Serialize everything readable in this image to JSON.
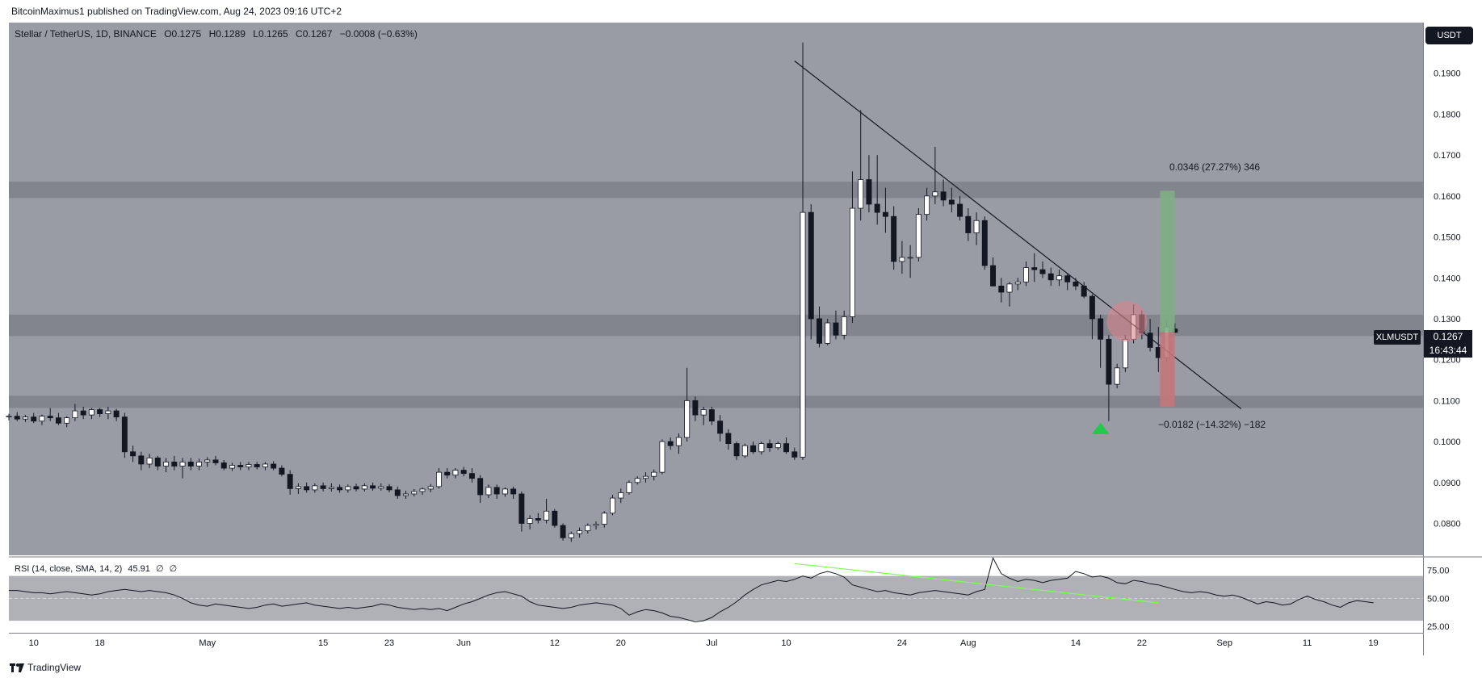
{
  "header": {
    "publish_line": "BitcoinMaximus1 published on TradingView.com, Aug 24, 2023 09:16 UTC+2"
  },
  "legend": {
    "symbol": "Stellar / TetherUS, 1D, BINANCE",
    "o_label": "O",
    "o_value": "0.1275",
    "h_label": "H",
    "h_value": "0.1289",
    "l_label": "L",
    "l_value": "0.1265",
    "c_label": "C",
    "c_value": "0.1267",
    "change": "−0.0008 (−0.63%)"
  },
  "currency_button": "USDT",
  "ticker": {
    "symbol": "XLMUSDT",
    "price": "0.1267",
    "countdown": "16:43:44"
  },
  "rsi_legend": {
    "label": "RSI (14, close, SMA, 14, 2)",
    "value": "45.91",
    "extra1": "∅",
    "extra2": "∅"
  },
  "footer": {
    "brand": "TradingView"
  },
  "colors": {
    "up": "#ffffff",
    "down": "#131722",
    "zone": "#7e8189",
    "green_target": "#7fae85",
    "red_target": "#c4757b",
    "rsi_trend": "#7cff55",
    "marker": "#22c94a",
    "circle": "#d9838b"
  },
  "chart_data": {
    "type": "candlestick",
    "symbol": "XLMUSDT",
    "interval": "1D",
    "ylim": [
      0.073,
      0.2
    ],
    "y_ticks": [
      0.08,
      0.09,
      0.1,
      0.11,
      0.12,
      0.13,
      0.14,
      0.15,
      0.16,
      0.17,
      0.18,
      0.19,
      0.2
    ],
    "y_tick_labels": [
      "0.0800",
      "0.0900",
      "0.1000",
      "0.1100",
      "0.1200",
      "0.1300",
      "0.1400",
      "0.1500",
      "0.1600",
      "0.1700",
      "0.1800",
      "0.1900",
      "0.2000"
    ],
    "x_ticks": [
      {
        "label": "10",
        "date": "2023-04-10"
      },
      {
        "label": "18",
        "date": "2023-04-18"
      },
      {
        "label": "May",
        "date": "2023-05-01"
      },
      {
        "label": "15",
        "date": "2023-05-15"
      },
      {
        "label": "23",
        "date": "2023-05-23"
      },
      {
        "label": "Jun",
        "date": "2023-06-01"
      },
      {
        "label": "12",
        "date": "2023-06-12"
      },
      {
        "label": "20",
        "date": "2023-06-20"
      },
      {
        "label": "Jul",
        "date": "2023-07-01"
      },
      {
        "label": "10",
        "date": "2023-07-10"
      },
      {
        "label": "24",
        "date": "2023-07-24"
      },
      {
        "label": "Aug",
        "date": "2023-08-01"
      },
      {
        "label": "14",
        "date": "2023-08-14"
      },
      {
        "label": "22",
        "date": "2023-08-22"
      },
      {
        "label": "Sep",
        "date": "2023-09-01"
      },
      {
        "label": "11",
        "date": "2023-09-11"
      },
      {
        "label": "19",
        "date": "2023-09-19"
      }
    ],
    "x_start": "2023-04-07",
    "x_end": "2023-09-25",
    "candles_start": "2023-04-07",
    "candles": [
      [
        0.106,
        0.1068,
        0.1052,
        0.1062
      ],
      [
        0.1062,
        0.1072,
        0.105,
        0.1055
      ],
      [
        0.1055,
        0.1065,
        0.1048,
        0.106
      ],
      [
        0.106,
        0.107,
        0.1045,
        0.105
      ],
      [
        0.105,
        0.1066,
        0.104,
        0.1062
      ],
      [
        0.1062,
        0.1082,
        0.105,
        0.1058
      ],
      [
        0.1058,
        0.107,
        0.104,
        0.1045
      ],
      [
        0.1045,
        0.1062,
        0.1035,
        0.1058
      ],
      [
        0.1058,
        0.1092,
        0.105,
        0.1075
      ],
      [
        0.1075,
        0.1085,
        0.1055,
        0.1065
      ],
      [
        0.1065,
        0.1082,
        0.1055,
        0.1078
      ],
      [
        0.1078,
        0.1082,
        0.106,
        0.1068
      ],
      [
        0.1068,
        0.1085,
        0.1055,
        0.1075
      ],
      [
        0.1075,
        0.108,
        0.105,
        0.106
      ],
      [
        0.106,
        0.107,
        0.096,
        0.0975
      ],
      [
        0.0975,
        0.099,
        0.095,
        0.0965
      ],
      [
        0.0965,
        0.0975,
        0.093,
        0.0945
      ],
      [
        0.0945,
        0.097,
        0.0935,
        0.096
      ],
      [
        0.096,
        0.0965,
        0.093,
        0.094
      ],
      [
        0.094,
        0.096,
        0.0925,
        0.095
      ],
      [
        0.095,
        0.0965,
        0.093,
        0.094
      ],
      [
        0.094,
        0.096,
        0.091,
        0.095
      ],
      [
        0.095,
        0.096,
        0.093,
        0.094
      ],
      [
        0.094,
        0.0958,
        0.093,
        0.095
      ],
      [
        0.095,
        0.0962,
        0.0938,
        0.0955
      ],
      [
        0.0955,
        0.0965,
        0.0942,
        0.0948
      ],
      [
        0.0948,
        0.0955,
        0.093,
        0.0935
      ],
      [
        0.0935,
        0.0948,
        0.0928,
        0.0942
      ],
      [
        0.0942,
        0.095,
        0.093,
        0.0938
      ],
      [
        0.0938,
        0.095,
        0.093,
        0.0944
      ],
      [
        0.0944,
        0.095,
        0.0932,
        0.0938
      ],
      [
        0.0938,
        0.095,
        0.093,
        0.0945
      ],
      [
        0.0945,
        0.0952,
        0.093,
        0.0935
      ],
      [
        0.0935,
        0.0942,
        0.0915,
        0.092
      ],
      [
        0.092,
        0.093,
        0.087,
        0.0885
      ],
      [
        0.0885,
        0.0898,
        0.0872,
        0.089
      ],
      [
        0.089,
        0.09,
        0.0875,
        0.0882
      ],
      [
        0.0882,
        0.0898,
        0.0875,
        0.0892
      ],
      [
        0.0892,
        0.09,
        0.0878,
        0.0885
      ],
      [
        0.0885,
        0.0898,
        0.0878,
        0.0888
      ],
      [
        0.0888,
        0.0895,
        0.0875,
        0.0882
      ],
      [
        0.0882,
        0.0895,
        0.0875,
        0.089
      ],
      [
        0.089,
        0.0897,
        0.0878,
        0.0884
      ],
      [
        0.0884,
        0.0898,
        0.0878,
        0.0892
      ],
      [
        0.0892,
        0.09,
        0.088,
        0.0886
      ],
      [
        0.0886,
        0.0898,
        0.088,
        0.089
      ],
      [
        0.089,
        0.0896,
        0.0876,
        0.0882
      ],
      [
        0.0882,
        0.089,
        0.086,
        0.0868
      ],
      [
        0.0868,
        0.088,
        0.086,
        0.0872
      ],
      [
        0.0872,
        0.0884,
        0.0866,
        0.0878
      ],
      [
        0.0878,
        0.0888,
        0.087,
        0.0884
      ],
      [
        0.0884,
        0.0896,
        0.0876,
        0.089
      ],
      [
        0.089,
        0.0935,
        0.0885,
        0.0925
      ],
      [
        0.0925,
        0.0935,
        0.091,
        0.0918
      ],
      [
        0.0918,
        0.0935,
        0.091,
        0.093
      ],
      [
        0.093,
        0.0938,
        0.0915,
        0.0922
      ],
      [
        0.0922,
        0.0935,
        0.09,
        0.091
      ],
      [
        0.091,
        0.0918,
        0.085,
        0.087
      ],
      [
        0.087,
        0.0895,
        0.0862,
        0.0888
      ],
      [
        0.0888,
        0.0895,
        0.086,
        0.0872
      ],
      [
        0.0872,
        0.0888,
        0.0865,
        0.0884
      ],
      [
        0.0884,
        0.089,
        0.086,
        0.0872
      ],
      [
        0.0872,
        0.0878,
        0.078,
        0.08
      ],
      [
        0.08,
        0.082,
        0.0785,
        0.0812
      ],
      [
        0.0812,
        0.0825,
        0.08,
        0.0808
      ],
      [
        0.0808,
        0.086,
        0.08,
        0.083
      ],
      [
        0.083,
        0.0835,
        0.079,
        0.0795
      ],
      [
        0.0795,
        0.08,
        0.0758,
        0.0765
      ],
      [
        0.0765,
        0.078,
        0.0755,
        0.0775
      ],
      [
        0.0775,
        0.079,
        0.0765,
        0.0782
      ],
      [
        0.0782,
        0.08,
        0.0775,
        0.0795
      ],
      [
        0.0795,
        0.0805,
        0.0785,
        0.0798
      ],
      [
        0.0798,
        0.083,
        0.079,
        0.0825
      ],
      [
        0.0825,
        0.087,
        0.082,
        0.0862
      ],
      [
        0.0862,
        0.0885,
        0.085,
        0.0875
      ],
      [
        0.0875,
        0.0905,
        0.087,
        0.09
      ],
      [
        0.09,
        0.0915,
        0.0895,
        0.091
      ],
      [
        0.091,
        0.0925,
        0.09,
        0.0915
      ],
      [
        0.0915,
        0.0932,
        0.0905,
        0.0925
      ],
      [
        0.0925,
        0.1005,
        0.092,
        0.1
      ],
      [
        0.1,
        0.101,
        0.098,
        0.099
      ],
      [
        0.099,
        0.102,
        0.097,
        0.101
      ],
      [
        0.101,
        0.118,
        0.1,
        0.11
      ],
      [
        0.11,
        0.111,
        0.105,
        0.1065
      ],
      [
        0.1065,
        0.1085,
        0.104,
        0.1078
      ],
      [
        0.1078,
        0.1085,
        0.104,
        0.105
      ],
      [
        0.105,
        0.1065,
        0.1,
        0.102
      ],
      [
        0.102,
        0.103,
        0.098,
        0.0995
      ],
      [
        0.0995,
        0.1,
        0.0955,
        0.0965
      ],
      [
        0.0965,
        0.0995,
        0.096,
        0.099
      ],
      [
        0.099,
        0.1,
        0.097,
        0.0975
      ],
      [
        0.0975,
        0.1,
        0.0968,
        0.0995
      ],
      [
        0.0995,
        0.1005,
        0.0975,
        0.0985
      ],
      [
        0.0985,
        0.1,
        0.098,
        0.0995
      ],
      [
        0.0995,
        0.101,
        0.097,
        0.0975
      ],
      [
        0.0975,
        0.0985,
        0.0955,
        0.0962
      ],
      [
        0.0962,
        0.1975,
        0.0955,
        0.156
      ],
      [
        0.156,
        0.158,
        0.125,
        0.13
      ],
      [
        0.13,
        0.133,
        0.123,
        0.124
      ],
      [
        0.124,
        0.13,
        0.1235,
        0.129
      ],
      [
        0.129,
        0.132,
        0.125,
        0.126
      ],
      [
        0.126,
        0.132,
        0.125,
        0.1305
      ],
      [
        0.1305,
        0.166,
        0.129,
        0.157
      ],
      [
        0.157,
        0.181,
        0.154,
        0.164
      ],
      [
        0.164,
        0.17,
        0.156,
        0.158
      ],
      [
        0.158,
        0.17,
        0.153,
        0.156
      ],
      [
        0.156,
        0.162,
        0.151,
        0.155
      ],
      [
        0.155,
        0.1575,
        0.142,
        0.144
      ],
      [
        0.144,
        0.149,
        0.141,
        0.145
      ],
      [
        0.145,
        0.148,
        0.14,
        0.145
      ],
      [
        0.145,
        0.157,
        0.144,
        0.1555
      ],
      [
        0.1555,
        0.162,
        0.154,
        0.16
      ],
      [
        0.16,
        0.172,
        0.158,
        0.161
      ],
      [
        0.161,
        0.164,
        0.1575,
        0.159
      ],
      [
        0.159,
        0.162,
        0.156,
        0.158
      ],
      [
        0.158,
        0.16,
        0.154,
        0.155
      ],
      [
        0.155,
        0.157,
        0.149,
        0.151
      ],
      [
        0.151,
        0.156,
        0.148,
        0.154
      ],
      [
        0.154,
        0.155,
        0.142,
        0.143
      ],
      [
        0.143,
        0.145,
        0.138,
        0.138
      ],
      [
        0.138,
        0.14,
        0.134,
        0.1365
      ],
      [
        0.1365,
        0.139,
        0.133,
        0.1385
      ],
      [
        0.1385,
        0.14,
        0.137,
        0.139
      ],
      [
        0.139,
        0.144,
        0.138,
        0.1425
      ],
      [
        0.1425,
        0.146,
        0.139,
        0.142
      ],
      [
        0.142,
        0.144,
        0.14,
        0.141
      ],
      [
        0.141,
        0.1425,
        0.138,
        0.1395
      ],
      [
        0.1395,
        0.142,
        0.138,
        0.1405
      ],
      [
        0.1405,
        0.141,
        0.137,
        0.139
      ],
      [
        0.139,
        0.14,
        0.137,
        0.138
      ],
      [
        0.138,
        0.139,
        0.135,
        0.1355
      ],
      [
        0.1355,
        0.136,
        0.125,
        0.13
      ],
      [
        0.13,
        0.131,
        0.118,
        0.125
      ],
      [
        0.125,
        0.126,
        0.105,
        0.114
      ],
      [
        0.114,
        0.119,
        0.113,
        0.118
      ],
      [
        0.118,
        0.126,
        0.117,
        0.125
      ],
      [
        0.125,
        0.1335,
        0.124,
        0.131
      ],
      [
        0.131,
        0.132,
        0.125,
        0.1265
      ],
      [
        0.1265,
        0.13,
        0.122,
        0.123
      ],
      [
        0.123,
        0.128,
        0.117,
        0.1205
      ],
      [
        0.1205,
        0.1295,
        0.1195,
        0.128
      ],
      [
        0.1275,
        0.1289,
        0.1265,
        0.1267
      ]
    ],
    "zones": [
      {
        "from": 0.1595,
        "to": 0.1635
      },
      {
        "from": 0.1258,
        "to": 0.131
      },
      {
        "from": 0.1082,
        "to": 0.1112
      }
    ],
    "trendline": [
      {
        "date": "2023-07-11",
        "price": 0.193
      },
      {
        "date": "2023-09-03",
        "price": 0.108
      }
    ],
    "target_up": {
      "from_date": "2023-08-24",
      "to_date": "2023-08-25",
      "from": 0.1267,
      "to": 0.1613,
      "label": "0.0346 (27.27%) 346"
    },
    "target_down": {
      "from_date": "2023-08-24",
      "to_date": "2023-08-25",
      "from": 0.1267,
      "to": 0.1085,
      "label": "−0.0182 (−14.32%) −182"
    },
    "marker_triangle": {
      "date": "2023-08-17",
      "price": 0.1032
    },
    "resistance_circle": {
      "date": "2023-08-20",
      "price": 0.129
    },
    "rsi": {
      "ylim": [
        20,
        87
      ],
      "y_ticks": [
        25,
        50,
        75
      ],
      "y_tick_labels": [
        "25.00",
        "50.00",
        "75.00"
      ],
      "band": [
        30,
        70
      ],
      "values": [
        57,
        57,
        56,
        55,
        55,
        54,
        55,
        56,
        55,
        54,
        53,
        54,
        56,
        57,
        58,
        57,
        56,
        57,
        56,
        55,
        53,
        50,
        46,
        44,
        43,
        45,
        44,
        43,
        42,
        41,
        42,
        44,
        45,
        43,
        44,
        45,
        46,
        44,
        43,
        42,
        41,
        42,
        41,
        42,
        43,
        45,
        44,
        42,
        41,
        40,
        41,
        40,
        41,
        39,
        42,
        45,
        47,
        50,
        53,
        55,
        56,
        54,
        52,
        47,
        44,
        43,
        42,
        41,
        42,
        44,
        45,
        46,
        45,
        44,
        41,
        35,
        38,
        40,
        39,
        37,
        34,
        33,
        31,
        29,
        30,
        33,
        38,
        42,
        47,
        53,
        58,
        62,
        64,
        66,
        65,
        67,
        70,
        68,
        72,
        74,
        72,
        69,
        62,
        60,
        58,
        56,
        57,
        55,
        54,
        53,
        55,
        56,
        57,
        56,
        55,
        54,
        53,
        56,
        58,
        86,
        72,
        68,
        65,
        67,
        66,
        64,
        66,
        67,
        68,
        74,
        72,
        69,
        70,
        68,
        64,
        63,
        66,
        65,
        63,
        62,
        60,
        58,
        56,
        55,
        56,
        55,
        53,
        52,
        53,
        51,
        48,
        45,
        47,
        46,
        44,
        45,
        49,
        52,
        49,
        47,
        44,
        42,
        46,
        48,
        47,
        46
      ],
      "trendline": [
        {
          "date": "2023-07-11",
          "value": 81
        },
        {
          "date": "2023-08-24",
          "value": 46
        }
      ]
    }
  }
}
